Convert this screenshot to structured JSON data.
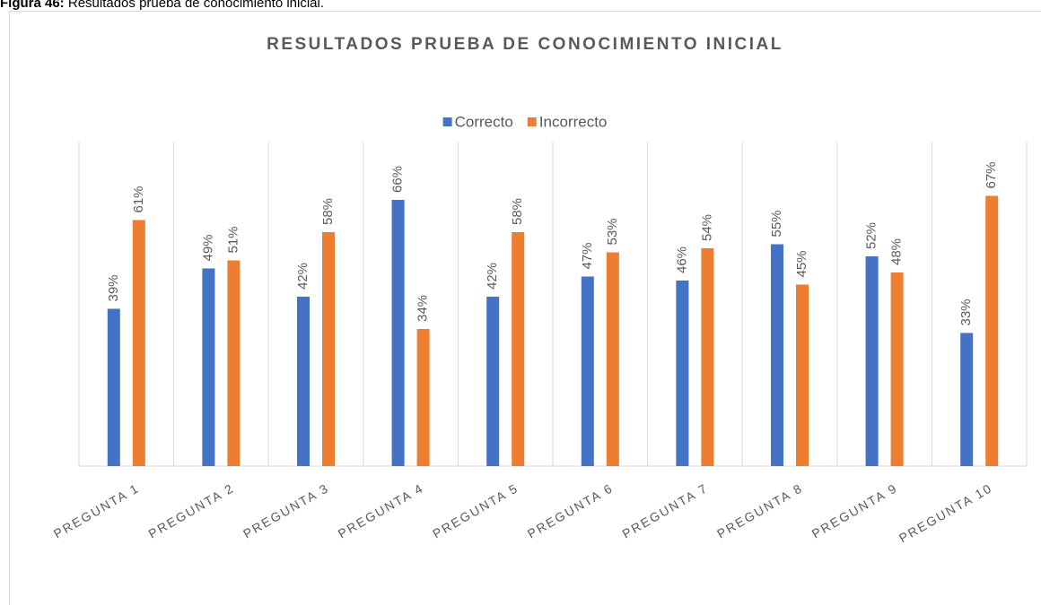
{
  "caption": {
    "label": "Figura 46:",
    "text": "Resultados prueba de conocimiento inicial."
  },
  "chart_data": {
    "type": "bar",
    "title": "RESULTADOS PRUEBA DE CONOCIMIENTO INICIAL",
    "categories": [
      "PREGUNTA 1",
      "PREGUNTA 2",
      "PREGUNTA 3",
      "PREGUNTA 4",
      "PREGUNTA 5",
      "PREGUNTA 6",
      "PREGUNTA 7",
      "PREGUNTA 8",
      "PREGUNTA 9",
      "PREGUNTA 10"
    ],
    "series": [
      {
        "name": "Correcto",
        "color": "#4472c4",
        "values": [
          39,
          49,
          42,
          66,
          42,
          47,
          46,
          55,
          52,
          33
        ],
        "value_labels": [
          "39%",
          "49%",
          "42%",
          "66%",
          "42%",
          "47%",
          "46%",
          "55%",
          "52%",
          "33%"
        ]
      },
      {
        "name": "Incorrecto",
        "color": "#ed7d31",
        "values": [
          61,
          51,
          58,
          34,
          58,
          53,
          54,
          45,
          48,
          67
        ],
        "value_labels": [
          "61%",
          "51%",
          "58%",
          "34%",
          "58%",
          "53%",
          "54%",
          "45%",
          "48%",
          "67%"
        ]
      }
    ],
    "ylim": [
      0,
      80
    ],
    "legend": "top",
    "grid": "vertical"
  }
}
